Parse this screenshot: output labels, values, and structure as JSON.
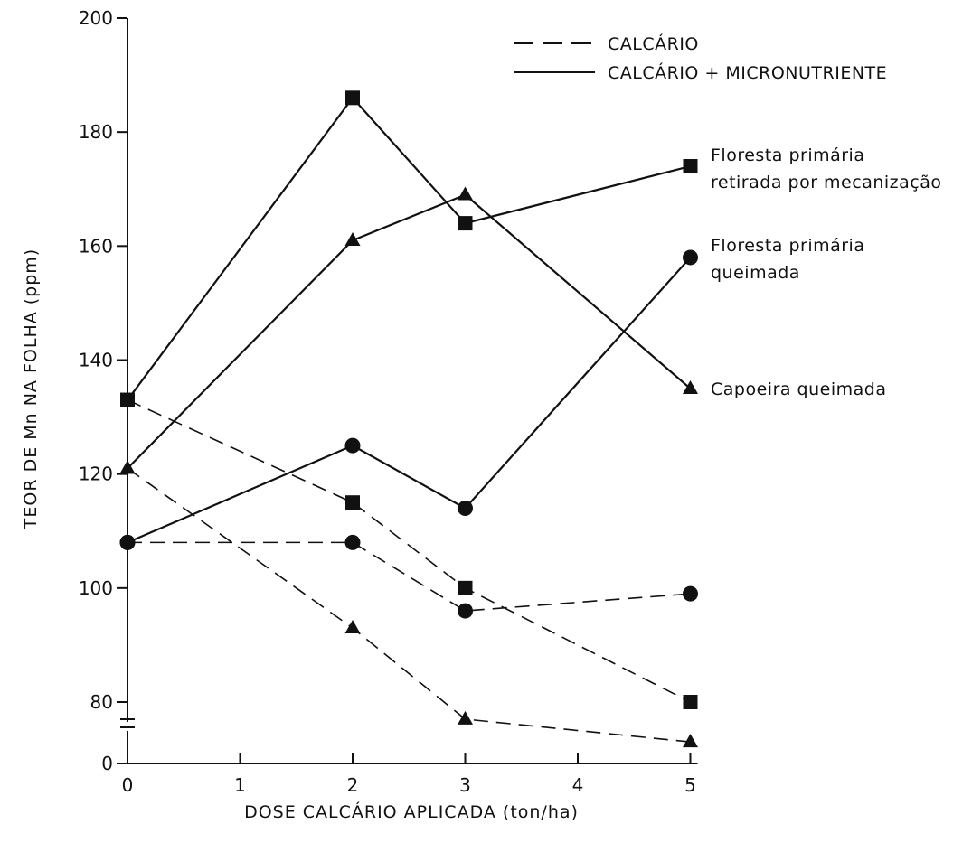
{
  "chart_data": {
    "type": "line",
    "xlabel": "DOSE CALCÁRIO APLICADA (ton/ha)",
    "ylabel": "TEOR DE Mn NA FOLHA (ppm)",
    "x_ticks": [
      "0",
      "1",
      "2",
      "3",
      "4",
      "5"
    ],
    "y_ticks": [
      "0",
      "80",
      "100",
      "120",
      "140",
      "160",
      "180",
      "200"
    ],
    "y_axis_break": "between 0 and 80",
    "ylim": [
      70,
      200
    ],
    "xlim": [
      0,
      5
    ],
    "grid": false,
    "legend": {
      "placement": "top-right",
      "entries": [
        {
          "label": "CALCÁRIO",
          "style": "dashed"
        },
        {
          "label": "CALCÁRIO + MICRONUTRIENTE",
          "style": "solid"
        }
      ]
    },
    "series_labels": [
      {
        "id": "square",
        "lines": [
          "Floresta primária",
          "retirada por mecanização"
        ]
      },
      {
        "id": "circle",
        "lines": [
          "Floresta primária",
          "queimada"
        ]
      },
      {
        "id": "triangle",
        "lines": [
          "Capoeira queimada"
        ]
      }
    ],
    "x": [
      0,
      2,
      3,
      5
    ],
    "series": [
      {
        "name": "Floresta primária retirada por mecanização",
        "treatment": "CALCÁRIO + MICRONUTRIENTE",
        "marker": "square",
        "line": "solid",
        "values": [
          133,
          186,
          164,
          174
        ]
      },
      {
        "name": "Capoeira queimada",
        "treatment": "CALCÁRIO + MICRONUTRIENTE",
        "marker": "triangle",
        "line": "solid",
        "values": [
          121,
          161,
          169,
          135
        ]
      },
      {
        "name": "Floresta primária queimada",
        "treatment": "CALCÁRIO + MICRONUTRIENTE",
        "marker": "circle",
        "line": "solid",
        "values": [
          108,
          125,
          114,
          158
        ]
      },
      {
        "name": "Floresta primária retirada por mecanização",
        "treatment": "CALCÁRIO",
        "marker": "square",
        "line": "dashed",
        "values": [
          133,
          115,
          100,
          80
        ]
      },
      {
        "name": "Floresta primária queimada",
        "treatment": "CALCÁRIO",
        "marker": "circle",
        "line": "dashed",
        "values": [
          108,
          108,
          96,
          99
        ]
      },
      {
        "name": "Capoeira queimada",
        "treatment": "CALCÁRIO",
        "marker": "triangle",
        "line": "dashed",
        "values": [
          121,
          93,
          77,
          73
        ]
      }
    ]
  }
}
